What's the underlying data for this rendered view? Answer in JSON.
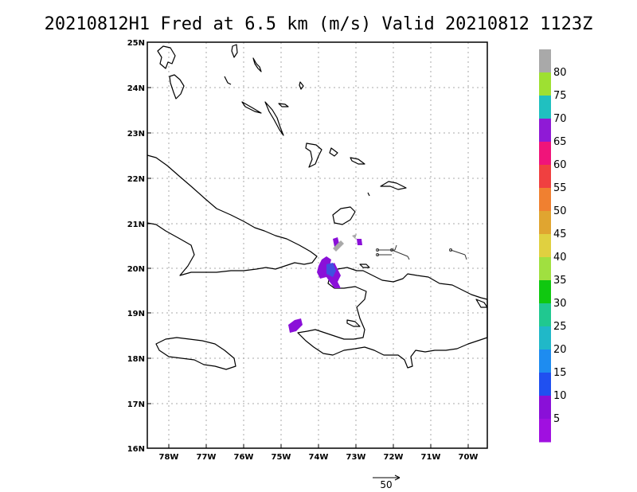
{
  "title": "20210812H1 Fred at 6.5 km (m/s) Valid 20210812  1123Z",
  "map": {
    "lat_labels": [
      "25N",
      "24N",
      "23N",
      "22N",
      "21N",
      "20N",
      "19N",
      "18N",
      "17N",
      "16N"
    ],
    "lon_labels": [
      "78W",
      "77W",
      "76W",
      "75W",
      "74W",
      "73W",
      "72W",
      "71W",
      "70W"
    ],
    "extent": {
      "lon_min": -78.6,
      "lon_max": -69.55,
      "lat_min": 16,
      "lat_max": 25
    },
    "grid": "dotted"
  },
  "colorbar": {
    "labels": [
      "80",
      "75",
      "70",
      "65",
      "60",
      "55",
      "50",
      "45",
      "40",
      "35",
      "30",
      "25",
      "20",
      "15",
      "10",
      "5"
    ],
    "colors": [
      "#a9a9a9",
      "#9ee032",
      "#20c0c0",
      "#8f1ad6",
      "#f0147a",
      "#f04040",
      "#f08030",
      "#e0a530",
      "#e0d040",
      "#a0e040",
      "#10c810",
      "#20c890",
      "#20b8c8",
      "#1e8cf0",
      "#2050f0",
      "#8a10d8",
      "#a010e0"
    ]
  },
  "vector_scale": {
    "label": "50"
  },
  "palette": {
    "coast": "#000000",
    "grid": "#aaaaaa",
    "echo_purple": "#8a10d8",
    "echo_blue": "#4050e0",
    "echo_gray": "#a9a9a9"
  }
}
